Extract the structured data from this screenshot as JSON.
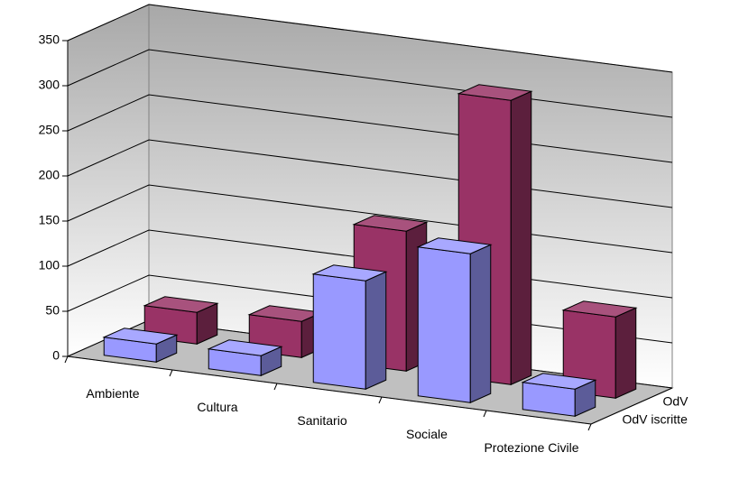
{
  "chart_data": {
    "type": "bar3d",
    "categories": [
      "Ambiente",
      "Cultura",
      "Sanitario",
      "Sociale",
      "Protezione Civile"
    ],
    "series": [
      {
        "name": "OdV",
        "color": "#993366",
        "values": [
          35,
          40,
          155,
          315,
          90
        ]
      },
      {
        "name": "OdV iscritte",
        "color": "#9999ff",
        "values": [
          20,
          22,
          120,
          165,
          30
        ]
      }
    ],
    "ylim": [
      0,
      350
    ],
    "yticks": [
      0,
      50,
      100,
      150,
      200,
      250,
      300,
      350
    ],
    "grid": true
  }
}
